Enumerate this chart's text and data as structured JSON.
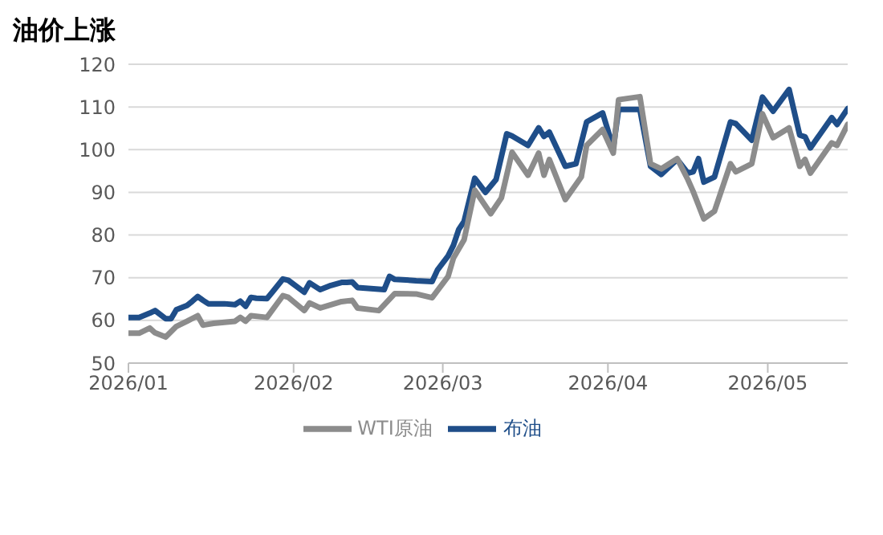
{
  "chart_data": {
    "type": "line",
    "title": "油价上涨",
    "xlim": [
      "2026-01-01",
      "2026-05-16"
    ],
    "xticks": [
      {
        "value": "2026-01-01",
        "label": "2026/01"
      },
      {
        "value": "2026-02-01",
        "label": "2026/02"
      },
      {
        "value": "2026-03-01",
        "label": "2026/03"
      },
      {
        "value": "2026-04-01",
        "label": "2026/04"
      },
      {
        "value": "2026-05-01",
        "label": "2026/05"
      }
    ],
    "ylim": [
      50,
      120
    ],
    "yticks": [
      50,
      60,
      70,
      80,
      90,
      100,
      110,
      120
    ],
    "grid": "y",
    "legend": "bottom",
    "marker": "none",
    "line_style": "solid",
    "series": [
      {
        "name": "布油",
        "color": "#1f4e89",
        "x": [
          "2026-01-01",
          "2026-01-03",
          "2026-01-05",
          "2026-01-06",
          "2026-01-08",
          "2026-01-09",
          "2026-01-10",
          "2026-01-12",
          "2026-01-13",
          "2026-01-14",
          "2026-01-15",
          "2026-01-16",
          "2026-01-19",
          "2026-01-21",
          "2026-01-22",
          "2026-01-23",
          "2026-01-24",
          "2026-01-25",
          "2026-01-27",
          "2026-01-28",
          "2026-01-30",
          "2026-01-31",
          "2026-02-03",
          "2026-02-04",
          "2026-02-06",
          "2026-02-08",
          "2026-02-10",
          "2026-02-11",
          "2026-02-12",
          "2026-02-13",
          "2026-02-14",
          "2026-02-18",
          "2026-02-19",
          "2026-02-20",
          "2026-02-23",
          "2026-02-24",
          "2026-02-27",
          "2026-02-28",
          "2026-03-02",
          "2026-03-03",
          "2026-03-04",
          "2026-03-05",
          "2026-03-07",
          "2026-03-09",
          "2026-03-11",
          "2026-03-13",
          "2026-03-14",
          "2026-03-17",
          "2026-03-19",
          "2026-03-20",
          "2026-03-21",
          "2026-03-24",
          "2026-03-26",
          "2026-03-28",
          "2026-03-31",
          "2026-04-02",
          "2026-04-03",
          "2026-04-07",
          "2026-04-09",
          "2026-04-11",
          "2026-04-14",
          "2026-04-16",
          "2026-04-17",
          "2026-04-18",
          "2026-04-19",
          "2026-04-21",
          "2026-04-24",
          "2026-04-25",
          "2026-04-28",
          "2026-04-30",
          "2026-05-02",
          "2026-05-05",
          "2026-05-07",
          "2026-05-08",
          "2026-05-09",
          "2026-05-13",
          "2026-05-14",
          "2026-05-16"
        ],
        "values": [
          60.7,
          60.7,
          61.7,
          62.3,
          60.4,
          60.4,
          62.5,
          63.5,
          64.5,
          65.6,
          64.7,
          63.9,
          63.9,
          63.7,
          64.5,
          63.3,
          65.4,
          65.2,
          65.1,
          66.6,
          69.7,
          69.4,
          66.6,
          68.8,
          67.2,
          68.2,
          68.9,
          68.9,
          69,
          67.7,
          67.6,
          67.2,
          70.3,
          69.6,
          69.4,
          69.3,
          69.1,
          71.8,
          75.1,
          77.6,
          81.3,
          83.2,
          93.3,
          90,
          93,
          103.7,
          103.2,
          101,
          105.1,
          103.1,
          104.1,
          96.1,
          96.7,
          106.5,
          108.6,
          100.4,
          109.4,
          109.4,
          96.1,
          94.2,
          97.7,
          94.5,
          94.8,
          97.9,
          92.4,
          93.6,
          106.5,
          106.1,
          102.2,
          112.3,
          109,
          114.1,
          103.4,
          103,
          100.4,
          107.5,
          105.9,
          109.6
        ]
      },
      {
        "name": "WTI原油",
        "color": "#8c8c8c",
        "x": [
          "2026-01-01",
          "2026-01-03",
          "2026-01-05",
          "2026-01-06",
          "2026-01-08",
          "2026-01-10",
          "2026-01-12",
          "2026-01-14",
          "2026-01-15",
          "2026-01-17",
          "2026-01-21",
          "2026-01-22",
          "2026-01-23",
          "2026-01-24",
          "2026-01-27",
          "2026-01-30",
          "2026-01-31",
          "2026-02-03",
          "2026-02-04",
          "2026-02-06",
          "2026-02-10",
          "2026-02-12",
          "2026-02-13",
          "2026-02-17",
          "2026-02-20",
          "2026-02-24",
          "2026-02-27",
          "2026-03-02",
          "2026-03-03",
          "2026-03-05",
          "2026-03-07",
          "2026-03-10",
          "2026-03-12",
          "2026-03-14",
          "2026-03-17",
          "2026-03-19",
          "2026-03-20",
          "2026-03-21",
          "2026-03-24",
          "2026-03-27",
          "2026-03-28",
          "2026-03-31",
          "2026-04-02",
          "2026-04-03",
          "2026-04-07",
          "2026-04-09",
          "2026-04-11",
          "2026-04-14",
          "2026-04-16",
          "2026-04-17",
          "2026-04-19",
          "2026-04-21",
          "2026-04-24",
          "2026-04-25",
          "2026-04-28",
          "2026-04-30",
          "2026-05-02",
          "2026-05-05",
          "2026-05-07",
          "2026-05-08",
          "2026-05-09",
          "2026-05-13",
          "2026-05-14",
          "2026-05-16"
        ],
        "values": [
          57,
          57,
          58.2,
          57.1,
          56.1,
          58.6,
          59.8,
          61.1,
          58.9,
          59.3,
          59.8,
          60.7,
          59.8,
          61.1,
          60.7,
          65.8,
          65.4,
          62.3,
          64.1,
          62.9,
          64.4,
          64.7,
          62.9,
          62.3,
          66.3,
          66.2,
          65.3,
          70.3,
          74.6,
          78.9,
          90.5,
          85,
          88.7,
          99.4,
          94,
          99.2,
          94,
          97.7,
          88.3,
          93.6,
          101,
          104.7,
          99.2,
          111.7,
          112.4,
          96.7,
          95.5,
          97.9,
          93,
          90.2,
          83.8,
          85.6,
          96.7,
          94.8,
          96.7,
          108.4,
          102.8,
          105.1,
          96.1,
          97.7,
          94.5,
          101.6,
          101,
          105.9
        ]
      }
    ]
  }
}
